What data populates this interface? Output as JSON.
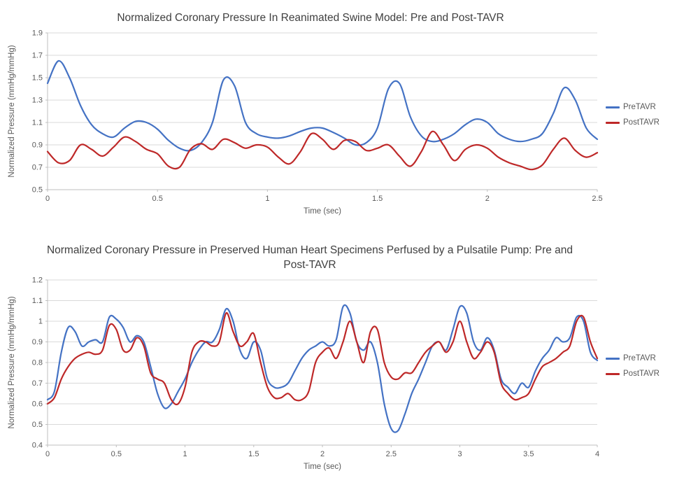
{
  "chart_data": [
    {
      "type": "line",
      "title": "Normalized Coronary Pressure In Reanimated Swine Model: Pre and Post-TAVR",
      "xlabel": "Time (sec)",
      "ylabel": "Normalized Pressure (mmHg/mmHg)",
      "xlim": [
        0,
        2.5
      ],
      "ylim": [
        0.5,
        1.9
      ],
      "xticks": [
        "0",
        "0.5",
        "1",
        "1.5",
        "2",
        "2.5"
      ],
      "yticks": [
        "0.5",
        "0.7",
        "0.9",
        "1.1",
        "1.3",
        "1.5",
        "1.7",
        "1.9"
      ],
      "grid": "horizontal",
      "legend_position": "right",
      "x_step": 0.05,
      "series": [
        {
          "name": "PreTAVR",
          "color": "#4472C4",
          "values": [
            1.45,
            1.65,
            1.5,
            1.25,
            1.08,
            1.0,
            0.97,
            1.05,
            1.11,
            1.1,
            1.04,
            0.94,
            0.87,
            0.85,
            0.92,
            1.1,
            1.48,
            1.43,
            1.1,
            1.0,
            0.97,
            0.96,
            0.98,
            1.02,
            1.05,
            1.05,
            1.01,
            0.96,
            0.9,
            0.92,
            1.05,
            1.4,
            1.45,
            1.15,
            0.98,
            0.93,
            0.95,
            1.0,
            1.08,
            1.13,
            1.1,
            1.0,
            0.95,
            0.93,
            0.95,
            1.0,
            1.18,
            1.41,
            1.3,
            1.05,
            0.95
          ]
        },
        {
          "name": "PostTAVR",
          "color": "#BE2828",
          "values": [
            0.84,
            0.74,
            0.76,
            0.9,
            0.86,
            0.8,
            0.88,
            0.97,
            0.93,
            0.86,
            0.82,
            0.71,
            0.7,
            0.86,
            0.91,
            0.86,
            0.95,
            0.92,
            0.87,
            0.9,
            0.88,
            0.79,
            0.73,
            0.84,
            1.0,
            0.95,
            0.86,
            0.94,
            0.93,
            0.85,
            0.87,
            0.9,
            0.8,
            0.71,
            0.84,
            1.02,
            0.9,
            0.76,
            0.86,
            0.9,
            0.87,
            0.79,
            0.74,
            0.71,
            0.68,
            0.72,
            0.86,
            0.96,
            0.85,
            0.79,
            0.83
          ]
        }
      ]
    },
    {
      "type": "line",
      "title": "Normalized Coronary Pressure in Preserved Human Heart Specimens Perfused by a Pulsatile Pump: Pre and Post-TAVR",
      "xlabel": "Time (sec)",
      "ylabel": "Normalized Pressure (mmHg/mmHg)",
      "xlim": [
        0,
        4
      ],
      "ylim": [
        0.4,
        1.2
      ],
      "xticks": [
        "0",
        "0.5",
        "1",
        "1.5",
        "2",
        "2.5",
        "3",
        "3.5",
        "4"
      ],
      "yticks": [
        "0.4",
        "0.5",
        "0.6",
        "0.7",
        "0.8",
        "0.9",
        "1",
        "1.1",
        "1.2"
      ],
      "grid": "horizontal",
      "legend_position": "right",
      "x_step": 0.05,
      "series": [
        {
          "name": "PreTAVR",
          "color": "#4472C4",
          "values": [
            0.62,
            0.66,
            0.85,
            0.97,
            0.95,
            0.88,
            0.9,
            0.91,
            0.9,
            1.02,
            1.01,
            0.97,
            0.9,
            0.93,
            0.9,
            0.78,
            0.65,
            0.58,
            0.6,
            0.66,
            0.72,
            0.8,
            0.86,
            0.9,
            0.9,
            0.96,
            1.06,
            1.0,
            0.86,
            0.82,
            0.9,
            0.86,
            0.72,
            0.68,
            0.68,
            0.7,
            0.76,
            0.82,
            0.86,
            0.88,
            0.9,
            0.88,
            0.91,
            1.07,
            1.04,
            0.9,
            0.86,
            0.9,
            0.8,
            0.6,
            0.48,
            0.47,
            0.55,
            0.65,
            0.72,
            0.8,
            0.88,
            0.9,
            0.86,
            0.96,
            1.07,
            1.04,
            0.9,
            0.86,
            0.92,
            0.86,
            0.72,
            0.68,
            0.65,
            0.7,
            0.68,
            0.76,
            0.82,
            0.86,
            0.92,
            0.9,
            0.92,
            1.02,
            1.0,
            0.85,
            0.81
          ]
        },
        {
          "name": "PostTAVR",
          "color": "#BE2828",
          "values": [
            0.6,
            0.63,
            0.72,
            0.78,
            0.82,
            0.84,
            0.85,
            0.84,
            0.86,
            0.98,
            0.96,
            0.86,
            0.86,
            0.92,
            0.88,
            0.75,
            0.72,
            0.7,
            0.62,
            0.6,
            0.68,
            0.85,
            0.9,
            0.9,
            0.88,
            0.9,
            1.04,
            0.95,
            0.88,
            0.9,
            0.94,
            0.8,
            0.68,
            0.63,
            0.63,
            0.65,
            0.62,
            0.62,
            0.66,
            0.8,
            0.85,
            0.87,
            0.82,
            0.9,
            1.0,
            0.9,
            0.8,
            0.95,
            0.96,
            0.8,
            0.73,
            0.72,
            0.75,
            0.75,
            0.8,
            0.85,
            0.88,
            0.9,
            0.85,
            0.9,
            1.0,
            0.9,
            0.82,
            0.85,
            0.9,
            0.85,
            0.7,
            0.65,
            0.62,
            0.63,
            0.65,
            0.72,
            0.78,
            0.8,
            0.82,
            0.85,
            0.88,
            1.0,
            1.02,
            0.9,
            0.82
          ]
        }
      ]
    }
  ],
  "style": {
    "gridline_color": "#d9d9d9",
    "axis_color": "#bfbfbf",
    "tick_text_color": "#595959",
    "title_color": "#404040"
  }
}
